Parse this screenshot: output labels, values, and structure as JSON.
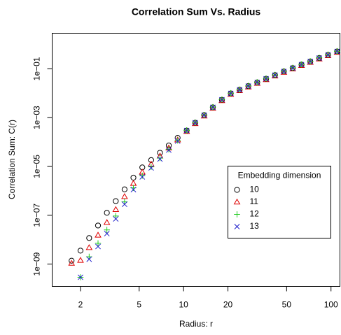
{
  "chart_data": {
    "type": "scatter",
    "title": "Correlation Sum Vs. Radius",
    "x_label": "Radius: r",
    "y_label": "Correlation Sum: C(r)",
    "log_x": true,
    "log_y": true,
    "xlim": [
      1.285,
      115
    ],
    "ylim": [
      1.22e-10,
      2.86
    ],
    "xticks": [
      2,
      5,
      10,
      20,
      50,
      100
    ],
    "yticks": [
      {
        "value": 1e-09,
        "label": "1e−09"
      },
      {
        "value": 1e-07,
        "label": "1e−07"
      },
      {
        "value": 1e-05,
        "label": "1e−05"
      },
      {
        "value": 0.001,
        "label": "1e−03"
      },
      {
        "value": 0.1,
        "label": "1e−01"
      }
    ],
    "legend_title": "Embedding dimension",
    "legend_position": "right",
    "x": [
      1.74,
      2.0,
      2.29,
      2.63,
      3.02,
      3.47,
      3.98,
      4.57,
      5.25,
      6.03,
      6.92,
      7.94,
      9.12,
      10.5,
      12.0,
      13.8,
      15.8,
      18.2,
      20.9,
      24.0,
      27.5,
      31.6,
      36.3,
      41.7,
      47.9,
      55.0,
      63.1,
      72.4,
      83.2,
      95.5,
      110
    ],
    "series": [
      {
        "name": "10",
        "color": "#000000",
        "marker": "circle",
        "values": [
          1.38e-09,
          3.55e-09,
          1.17e-08,
          3.8e-08,
          1.26e-07,
          3.8e-07,
          1.15e-06,
          3.47e-06,
          9.12e-06,
          1.82e-05,
          3.63e-05,
          7.24e-05,
          0.000148,
          0.000295,
          0.000617,
          0.00126,
          0.00263,
          0.00537,
          0.00977,
          0.0138,
          0.0195,
          0.0275,
          0.0389,
          0.055,
          0.0776,
          0.107,
          0.148,
          0.2,
          0.275,
          0.372,
          0.513
        ]
      },
      {
        "name": "11",
        "color": "#df0000",
        "marker": "triangle",
        "values": [
          1.07e-09,
          1.41e-09,
          4.68e-09,
          1.51e-08,
          5.01e-08,
          1.7e-07,
          5.75e-07,
          2e-06,
          5.75e-06,
          1.23e-05,
          2.63e-05,
          5.62e-05,
          0.00012,
          0.000269,
          0.000562,
          0.00115,
          0.0024,
          0.0049,
          0.00891,
          0.0126,
          0.0178,
          0.0251,
          0.0355,
          0.0501,
          0.0708,
          0.0977,
          0.135,
          0.182,
          0.251,
          0.339,
          0.468
        ]
      },
      {
        "name": "12",
        "color": "#22cc22",
        "marker": "plus",
        "values": [
          null,
          2.88e-10,
          2e-09,
          7.08e-09,
          2.51e-08,
          9.33e-08,
          3.55e-07,
          1.32e-06,
          4.17e-06,
          9.55e-06,
          2.19e-05,
          5.01e-05,
          0.000115,
          0.000302,
          0.000631,
          0.00129,
          0.00269,
          0.0055,
          0.01,
          0.0141,
          0.02,
          0.0282,
          0.0398,
          0.0562,
          0.0794,
          0.11,
          0.151,
          0.204,
          0.282,
          0.38,
          0.525
        ]
      },
      {
        "name": "13",
        "color": "#2222cc",
        "marker": "cross",
        "values": [
          null,
          2.88e-10,
          1.58e-09,
          5.25e-09,
          1.78e-08,
          7.08e-08,
          2.82e-07,
          1.12e-06,
          3.72e-06,
          8.71e-06,
          2e-05,
          4.68e-05,
          0.00011,
          0.000295,
          0.000617,
          0.00126,
          0.00263,
          0.00537,
          0.00977,
          0.0138,
          0.0195,
          0.0275,
          0.0389,
          0.055,
          0.0776,
          0.107,
          0.148,
          0.2,
          0.275,
          0.372,
          0.513
        ]
      }
    ]
  }
}
